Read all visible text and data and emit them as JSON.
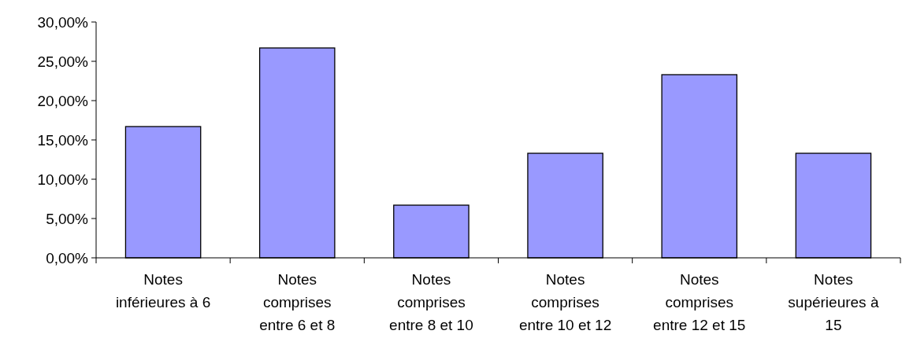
{
  "chart_data": {
    "type": "bar",
    "categories": [
      "Notes inférieures à 6",
      "Notes comprises entre 6 et 8",
      "Notes comprises entre 8 et 10",
      "Notes comprises entre 10 et 12",
      "Notes comprises entre 12 et 15",
      "Notes supérieures à 15"
    ],
    "values": [
      16.7,
      26.7,
      6.7,
      13.3,
      23.3,
      13.3
    ],
    "color": "#9999ff",
    "ylim": [
      0,
      30
    ],
    "yticks": [
      {
        "value": 0,
        "label": "0,00%"
      },
      {
        "value": 5,
        "label": "5,00%"
      },
      {
        "value": 10,
        "label": "10,00%"
      },
      {
        "value": 15,
        "label": "15,00%"
      },
      {
        "value": 20,
        "label": "20,00%"
      },
      {
        "value": 25,
        "label": "25,00%"
      },
      {
        "value": 30,
        "label": "30,00%"
      }
    ]
  }
}
